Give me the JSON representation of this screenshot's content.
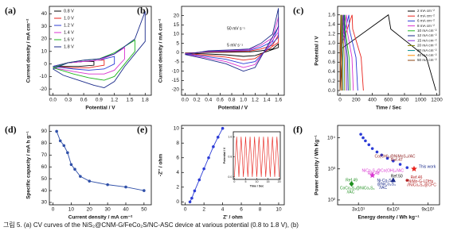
{
  "caption": "그림 5. (a) CV curves of the NiS₂@CNM-G/FeCo₂S/NC-ASC device at various potential (0.8 to 1.8 V), (b)",
  "chart_data": [
    {
      "type": "line",
      "label": "(a)",
      "xlabel": "Potential / V",
      "ylabel": "Current density / mA cm⁻²",
      "xlim": [
        -0.07,
        1.92
      ],
      "ylim": [
        -25,
        46
      ],
      "xticks": [
        {
          "value": 0,
          "label": "0.0"
        },
        0.3,
        0.6,
        0.9,
        1.2,
        1.5,
        1.8
      ],
      "yticks": [
        -20,
        -10,
        0,
        10,
        20,
        30,
        40
      ],
      "legend": "upper left",
      "series": [
        {
          "name": "0.8 V",
          "color": "#000000",
          "x": [
            0,
            0.3,
            0.6,
            0.8,
            0.8,
            0.5,
            0.2,
            0
          ],
          "values": [
            -2,
            1,
            2,
            2,
            -1,
            -2,
            -2,
            -2
          ]
        },
        {
          "name": "1.0 V",
          "color": "#e8231d",
          "x": [
            0,
            0.3,
            0.6,
            0.9,
            1.0,
            1.0,
            0.7,
            0.4,
            0
          ],
          "values": [
            -2,
            1,
            2,
            3,
            3,
            -1,
            -3,
            -3,
            -2
          ]
        },
        {
          "name": "1.2 V",
          "color": "#2b3bd6",
          "x": [
            0,
            0.3,
            0.6,
            0.9,
            1.2,
            1.2,
            1.0,
            0.7,
            0.4,
            0
          ],
          "values": [
            -2,
            1,
            2,
            3,
            6,
            0,
            -4,
            -5,
            -4,
            -2
          ]
        },
        {
          "name": "1.4 V",
          "color": "#d833d0",
          "x": [
            0,
            0.3,
            0.6,
            0.9,
            1.2,
            1.4,
            1.4,
            1.2,
            1.0,
            0.7,
            0.4,
            0
          ],
          "values": [
            -3,
            1,
            2,
            3,
            8,
            13,
            4,
            -5,
            -8,
            -8,
            -6,
            -3
          ]
        },
        {
          "name": "1.6 V",
          "color": "#1fb51f",
          "x": [
            0,
            0.3,
            0.6,
            0.9,
            1.2,
            1.4,
            1.6,
            1.6,
            1.4,
            1.2,
            1.0,
            0.7,
            0.4,
            0
          ],
          "values": [
            -3,
            1,
            3,
            4,
            9,
            14,
            19,
            10,
            0,
            -10,
            -13,
            -11,
            -8,
            -3
          ]
        },
        {
          "name": "1.8 V",
          "color": "#1a2a8a",
          "x": [
            0,
            0.3,
            0.6,
            0.9,
            1.2,
            1.4,
            1.6,
            1.8,
            1.8,
            1.6,
            1.4,
            1.2,
            1.0,
            0.8,
            0.5,
            0.2,
            0
          ],
          "values": [
            -4,
            1,
            3,
            4,
            8,
            14,
            20,
            42,
            18,
            8,
            -2,
            -14,
            -19,
            -17,
            -13,
            -9,
            -4
          ]
        }
      ]
    },
    {
      "type": "line",
      "label": "(b)",
      "xlabel": "Potential / V",
      "ylabel": "Current density / mA cm⁻²",
      "xlim": [
        -0.06,
        1.7
      ],
      "ylim": [
        -23,
        25
      ],
      "xticks": [
        {
          "value": 0,
          "label": "0.0"
        },
        0.2,
        0.4,
        0.6,
        0.8,
        {
          "value": 1,
          "label": "1.0"
        },
        1.2,
        1.4,
        1.6
      ],
      "yticks": [
        -20,
        -15,
        -10,
        -5,
        0,
        5,
        10,
        15,
        20
      ],
      "annotations": [
        {
          "text": "50 mV s⁻¹",
          "x": 0.72,
          "y": 13,
          "color": "#000000"
        },
        {
          "text": "5 mV s⁻¹",
          "x": 0.72,
          "y": 4,
          "color": "#000000"
        }
      ],
      "series": [
        {
          "color": "#000000",
          "x": [
            0,
            0.4,
            0.8,
            1.1,
            1.3,
            1.5,
            1.6,
            1.6,
            1.4,
            1.2,
            1.0,
            0.7,
            0.3,
            0
          ],
          "values": [
            -0.2,
            0.2,
            0.3,
            0.4,
            1,
            2,
            4.8,
            2.8,
            0.6,
            -1.6,
            -2,
            -1.2,
            -0.6,
            -0.2
          ]
        },
        {
          "color": "#e8231d",
          "x": [
            0,
            0.4,
            0.8,
            1.1,
            1.3,
            1.5,
            1.6,
            1.6,
            1.4,
            1.2,
            1.0,
            0.7,
            0.3,
            0
          ],
          "values": [
            -0.4,
            0.4,
            0.6,
            0.8,
            2,
            4,
            9.6,
            5.6,
            1.2,
            -3.2,
            -4,
            -2.4,
            -1.2,
            -0.4
          ]
        },
        {
          "color": "#2b3bd6",
          "x": [
            0,
            0.4,
            0.8,
            1.1,
            1.3,
            1.5,
            1.6,
            1.6,
            1.4,
            1.2,
            1.0,
            0.7,
            0.3,
            0
          ],
          "values": [
            -0.6,
            0.6,
            0.9,
            1.2,
            3,
            6,
            14.4,
            8.4,
            1.8,
            -4.8,
            -6,
            -3.6,
            -1.8,
            -0.6
          ]
        },
        {
          "color": "#d833d0",
          "x": [
            0,
            0.4,
            0.8,
            1.1,
            1.3,
            1.5,
            1.6,
            1.6,
            1.4,
            1.2,
            1.0,
            0.7,
            0.3,
            0
          ],
          "values": [
            -0.8,
            0.8,
            1.2,
            1.6,
            4,
            8,
            19.2,
            11.2,
            2.4,
            -6.4,
            -8,
            -4.8,
            -2.4,
            -0.8
          ]
        },
        {
          "color": "#1a2a8a",
          "x": [
            0,
            0.4,
            0.8,
            1.1,
            1.3,
            1.5,
            1.6,
            1.6,
            1.4,
            1.2,
            1.0,
            0.7,
            0.3,
            0
          ],
          "values": [
            -1,
            1,
            1.5,
            2,
            5,
            10,
            24,
            14,
            3,
            -8,
            -10,
            -6,
            -3,
            -1
          ]
        }
      ]
    },
    {
      "type": "line",
      "label": "(c)",
      "xlabel": "Time / Sec",
      "ylabel": "Potential / V",
      "xlim": [
        -30,
        1235
      ],
      "ylim": [
        -0.1,
        1.78
      ],
      "xticks": [
        0,
        200,
        400,
        600,
        800,
        1000,
        1200
      ],
      "yticks": [
        {
          "value": 0,
          "label": "0.0"
        },
        0.2,
        0.4,
        0.6,
        0.8,
        {
          "value": 1,
          "label": "1.0"
        },
        1.2,
        1.4,
        1.6
      ],
      "legend": "upper right",
      "series": [
        {
          "name": "2 mA cm⁻²",
          "color": "#000000",
          "x": [
            0,
            30,
            600,
            630,
            1072,
            1190
          ],
          "values": [
            0,
            0.9,
            1.6,
            1.3,
            0.7,
            0
          ]
        },
        {
          "name": "4 mA cm⁻²",
          "color": "#e8231d",
          "x": [
            0,
            8,
            150,
            157,
            262,
            290
          ],
          "values": [
            0,
            0.9,
            1.6,
            1.3,
            0.7,
            0
          ]
        },
        {
          "name": "6 mA cm⁻²",
          "color": "#2b3bd6",
          "x": [
            0,
            6,
            110,
            116,
            198,
            220
          ],
          "values": [
            0,
            0.9,
            1.6,
            1.3,
            0.7,
            0
          ]
        },
        {
          "name": "8 mA cm⁻²",
          "color": "#d833d0",
          "x": [
            0,
            4,
            80,
            84,
            148,
            165
          ],
          "values": [
            0,
            0.9,
            1.6,
            1.3,
            0.7,
            0
          ]
        },
        {
          "name": "10 mA cm⁻²",
          "color": "#1fb51f",
          "x": [
            0,
            3,
            60,
            63,
            112,
            125
          ],
          "values": [
            0,
            0.9,
            1.6,
            1.3,
            0.7,
            0
          ]
        },
        {
          "name": "12 mA cm⁻²",
          "color": "#1a2a8a",
          "x": [
            0,
            3,
            50,
            53,
            92,
            102
          ],
          "values": [
            0,
            0.9,
            1.6,
            1.3,
            0.7,
            0
          ]
        },
        {
          "name": "15 mA cm⁻²",
          "color": "#8a2be2",
          "x": [
            0,
            2,
            40,
            42,
            74,
            82
          ],
          "values": [
            0,
            0.9,
            1.6,
            1.3,
            0.7,
            0
          ]
        },
        {
          "name": "20 mA cm⁻²",
          "color": "#808000",
          "x": [
            0,
            1,
            28,
            30,
            52,
            58
          ],
          "values": [
            0,
            0.9,
            1.6,
            1.3,
            0.7,
            0
          ]
        },
        {
          "name": "30 mA cm⁻²",
          "color": "#008b8b",
          "x": [
            0,
            1,
            18,
            19,
            34,
            38
          ],
          "values": [
            0,
            0.9,
            1.6,
            1.3,
            0.7,
            0
          ]
        },
        {
          "name": "40 mA cm⁻²",
          "color": "#ff8c00",
          "x": [
            0,
            1,
            12,
            13,
            23,
            26
          ],
          "values": [
            0,
            0.9,
            1.6,
            1.3,
            0.7,
            0
          ]
        },
        {
          "name": "50 mA cm⁻²",
          "color": "#8b4513",
          "x": [
            0,
            0,
            9,
            10,
            17,
            19
          ],
          "values": [
            0,
            0.9,
            1.6,
            1.3,
            0.7,
            0
          ]
        }
      ]
    },
    {
      "type": "line",
      "label": "(d)",
      "xlabel": "Current density / mA cm⁻²",
      "ylabel": "Specific capacity / mA h g⁻¹",
      "xlim": [
        -2,
        54
      ],
      "ylim": [
        28,
        95
      ],
      "xticks": [
        0,
        10,
        20,
        30,
        40,
        50
      ],
      "yticks": [
        30,
        40,
        50,
        60,
        70,
        80,
        90
      ],
      "series": [
        {
          "color": "#2f4fa8",
          "marker": "circle",
          "x": [
            2,
            4,
            6,
            8,
            10,
            12,
            15,
            20,
            30,
            40,
            50
          ],
          "values": [
            90,
            82,
            78,
            72,
            62,
            58,
            52,
            48,
            45,
            43,
            40
          ]
        }
      ]
    },
    {
      "type": "line",
      "label": "(e)",
      "xlabel": "Z' / ohm",
      "ylabel": "-Z'' / ohm",
      "xlim": [
        -0.4,
        10.6
      ],
      "ylim": [
        -0.4,
        10.4
      ],
      "xticks": [
        0,
        2,
        4,
        6,
        8,
        10
      ],
      "yticks": [
        0,
        2,
        4,
        6,
        8,
        10
      ],
      "series": [
        {
          "color": "#2b3bd6",
          "marker": "circle",
          "x": [
            0.5,
            0.7,
            1,
            1.5,
            2,
            2.5,
            3,
            3.5,
            4
          ],
          "values": [
            0,
            0.5,
            1.5,
            3,
            4.5,
            6,
            7.5,
            8.8,
            10
          ]
        }
      ]
    },
    {
      "type": "line",
      "xlabel": "Time / Sec",
      "ylabel": "Potential / V",
      "xlim": [
        -0.5,
        20.5
      ],
      "ylim": [
        -0.1,
        1.8
      ],
      "xticks": [
        0,
        5,
        10,
        15,
        20
      ],
      "yticks": [
        {
          "value": 0,
          "label": "0.0"
        },
        0.8,
        1.6
      ],
      "series": [
        {
          "color": "#e8231d",
          "x": [
            0,
            1,
            2,
            3,
            4,
            5,
            6,
            7,
            8,
            9,
            10,
            11,
            12,
            13,
            14,
            15,
            16,
            17,
            18,
            19,
            20
          ],
          "values": [
            0,
            1.6,
            0,
            1.6,
            0,
            1.6,
            0,
            1.6,
            0,
            1.6,
            0,
            1.6,
            0,
            1.6,
            0,
            1.6,
            0,
            1.6,
            0,
            1.6,
            0
          ]
        }
      ]
    },
    {
      "type": "scatter",
      "label": "(f)",
      "xlabel": "Energy density / Wh kg⁻¹",
      "ylabel": "Power density / Wh Kg⁻¹",
      "yscale": "log",
      "xlim": [
        12,
        100
      ],
      "ylim": [
        70,
        25000
      ],
      "xticks": [
        {
          "value": 30,
          "label": "3x10¹"
        },
        {
          "value": 60,
          "label": "6x10¹"
        },
        {
          "value": 90,
          "label": "9x10¹"
        }
      ],
      "yticks": [
        {
          "value": 100,
          "label": "10²"
        },
        {
          "value": 1000,
          "label": "10³"
        },
        {
          "value": 10000,
          "label": "10⁴"
        }
      ],
      "series": [
        {
          "color": "#2b3bd6",
          "marker": "circle",
          "x": [
            32,
            34,
            36,
            39,
            42,
            46,
            50,
            55,
            60,
            66,
            72
          ],
          "values": [
            13000,
            10000,
            8000,
            6000,
            4500,
            3500,
            2800,
            2200,
            1800,
            1400,
            1100
          ]
        },
        {
          "color": "#e8231d",
          "marker": "star",
          "x": [
            78
          ],
          "values": [
            1000
          ]
        },
        {
          "color": "#1f8f1f",
          "marker": "diamond",
          "x": [
            24
          ],
          "values": [
            330
          ]
        },
        {
          "color": "#d833d0",
          "marker": "star",
          "x": [
            42
          ],
          "values": [
            620
          ]
        },
        {
          "color": "#1a2a8a",
          "marker": "triangle",
          "x": [
            60
          ],
          "values": [
            440
          ]
        },
        {
          "color": "#b22222",
          "marker": "circle",
          "x": [
            72
          ],
          "values": [
            430
          ]
        }
      ],
      "annotations": [
        {
          "text": "Co(OH)₂@NiMoS₄//AC",
          "x": 44,
          "y": 2500,
          "color": "#8b1a1a"
        },
        {
          "text": "Ref.47",
          "x": 58,
          "y": 1900,
          "color": "#8b1a1a"
        },
        {
          "text": "This work",
          "x": 82,
          "y": 1150,
          "color": "#1a2a8a"
        },
        {
          "text": "NiCo₂S₄@Co(OH)₂//AC",
          "x": 33,
          "y": 860,
          "color": "#d833d0"
        },
        {
          "text": "Ref.48",
          "x": 38,
          "y": 700,
          "color": "#d833d0"
        },
        {
          "text": "Ref.50",
          "x": 58,
          "y": 580,
          "color": "#000000"
        },
        {
          "text": "Ref.49",
          "x": 19,
          "y": 430,
          "color": "#1f8f1f"
        },
        {
          "text": "CoCo₂S₄@NiCo₂S₄",
          "x": 14,
          "y": 240,
          "color": "#1f8f1f"
        },
        {
          "text": "//AC",
          "x": 20,
          "y": 180,
          "color": "#1f8f1f"
        },
        {
          "text": "Ni-Co₃S₄",
          "x": 46,
          "y": 420,
          "color": "#1a2a8a"
        },
        {
          "text": "@NiCo₂S₄",
          "x": 46,
          "y": 320,
          "color": "#1a2a8a"
        },
        {
          "text": "//AC",
          "x": 48,
          "y": 245,
          "color": "#1a2a8a"
        },
        {
          "text": "Ref.46",
          "x": 75,
          "y": 520,
          "color": "#b22222"
        },
        {
          "text": "NiMo-G-LDHs",
          "x": 73,
          "y": 390,
          "color": "#b22222"
        },
        {
          "text": "//NiCo₂S₄@CFC",
          "x": 72,
          "y": 300,
          "color": "#b22222"
        }
      ]
    }
  ]
}
